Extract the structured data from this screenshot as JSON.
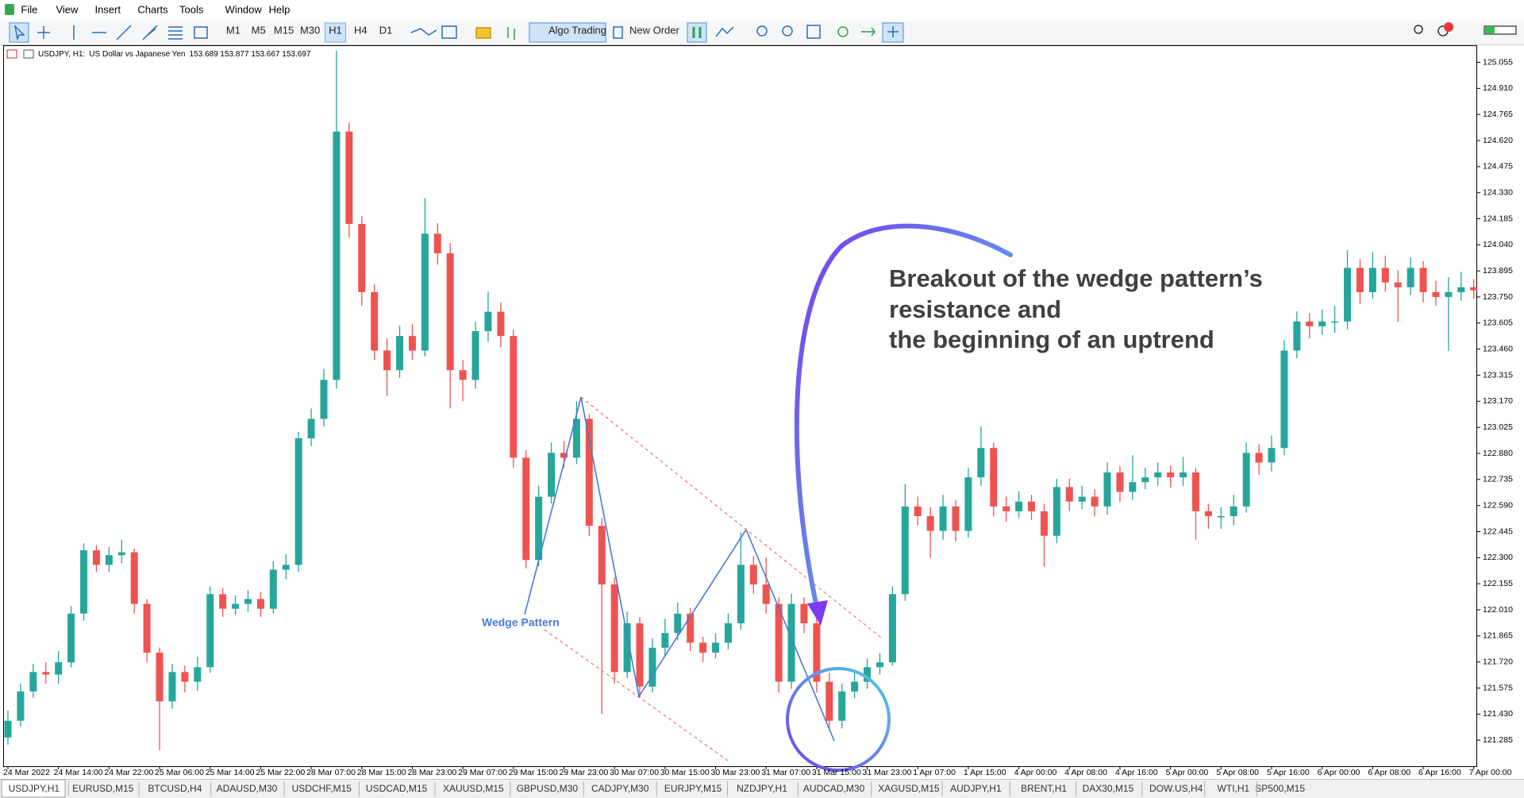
{
  "menu": [
    "File",
    "View",
    "Insert",
    "Charts",
    "Tools",
    "Window",
    "Help"
  ],
  "toolbar": {
    "timeframes": [
      "M1",
      "M5",
      "M15",
      "M30",
      "H1",
      "H4",
      "D1"
    ],
    "active_timeframe": "H1",
    "algo_trading": "Algo Trading",
    "new_order": "New Order"
  },
  "chart_header": {
    "symbol": "USDJPY, H1:",
    "description": "US Dollar vs Japanese Yen",
    "quotes": "153.689 153.877 153.667 153.697"
  },
  "annotations": {
    "breakout": [
      "Breakout of the wedge pattern’s",
      "resistance and",
      "the beginning of an uptrend"
    ],
    "wedge": "Wedge Pattern"
  },
  "tabs": [
    "USDJPY,H1",
    "EURUSD,M15",
    "BTCUSD,H4",
    "ADAUSD,M30",
    "USDCHF,M15",
    "USDCAD,M15",
    "XAUUSD,M15",
    "GBPUSD,M30",
    "CADJPY,M30",
    "EURJPY,M15",
    "NZDJPY,H1",
    "AUDCAD,M30",
    "XAGUSD,M15",
    "AUDJPY,H1",
    "BRENT,H1",
    "DAX30,M15",
    "DOW.US,H4",
    "WTI,H1",
    "SP500,M15"
  ],
  "chart_data": {
    "type": "candlestick",
    "up_color": "#26a69a",
    "down_color": "#ef5350",
    "categories": [
      "24 Mar 2022",
      null,
      null,
      null,
      "24 Mar 14:00",
      null,
      null,
      null,
      "24 Mar 22:00",
      null,
      null,
      null,
      "25 Mar 06:00",
      null,
      null,
      null,
      "25 Mar 14:00",
      null,
      null,
      null,
      "25 Mar 22:00",
      null,
      null,
      null,
      "28 Mar 07:00",
      null,
      null,
      null,
      "28 Mar 15:00",
      null,
      null,
      null,
      "28 Mar 23:00",
      null,
      null,
      null,
      "29 Mar 07:00",
      null,
      null,
      null,
      "29 Mar 15:00",
      null,
      null,
      null,
      "29 Mar 23:00",
      null,
      null,
      null,
      "30 Mar 07:00",
      null,
      null,
      null,
      "30 Mar 15:00",
      null,
      null,
      null,
      "30 Mar 23:00",
      null,
      null,
      null,
      "31 Mar 07:00",
      null,
      null,
      null,
      "31 Mar 15:00",
      null,
      null,
      null,
      "31 Mar 23:00",
      null,
      null,
      null,
      "1 Apr 07:00",
      null,
      null,
      null,
      "1 Apr 15:00",
      null,
      null,
      null,
      "4 Apr 00:00",
      null,
      null,
      null,
      "4 Apr 08:00",
      null,
      null,
      null,
      "4 Apr 16:00",
      null,
      null,
      null,
      "5 Apr 00:00",
      null,
      null,
      null,
      "5 Apr 08:00",
      null,
      null,
      null,
      "5 Apr 16:00",
      null,
      null,
      null,
      "6 Apr 00:00",
      null,
      null,
      null,
      "6 Apr 08:00",
      null,
      null,
      null,
      "6 Apr 16:00",
      null,
      null,
      null,
      "7 Apr 00:00"
    ],
    "open": [
      121.3,
      121.393,
      121.556,
      121.664,
      121.65,
      121.718,
      121.989,
      122.341,
      122.26,
      122.314,
      122.33,
      122.043,
      121.772,
      121.501,
      121.664,
      121.61,
      121.691,
      122.097,
      122.016,
      122.043,
      122.07,
      122.016,
      122.233,
      122.26,
      122.964,
      123.072,
      123.289,
      124.67,
      124.156,
      123.777,
      123.452,
      123.343,
      123.533,
      123.452,
      124.102,
      123.993,
      123.343,
      123.289,
      123.56,
      123.668,
      123.533,
      122.856,
      122.287,
      122.639,
      122.883,
      122.856,
      123.072,
      122.477,
      122.151,
      121.664,
      121.935,
      121.583,
      121.799,
      121.881,
      121.989,
      121.827,
      121.772,
      121.827,
      121.935,
      122.26,
      122.151,
      122.043,
      121.61,
      122.043,
      121.935,
      121.61,
      121.393,
      121.556,
      121.61,
      121.691,
      121.718,
      122.097,
      122.585,
      122.531,
      122.449,
      122.585,
      122.449,
      122.747,
      122.91,
      122.585,
      122.558,
      122.612,
      122.558,
      122.422,
      122.693,
      122.612,
      122.639,
      122.585,
      122.774,
      122.666,
      122.72,
      122.747,
      122.774,
      122.747,
      122.774,
      122.558,
      122.531,
      122.531,
      122.585,
      122.883,
      122.829,
      122.91,
      123.452,
      123.614,
      123.587,
      123.614,
      123.614,
      123.912,
      123.777,
      123.912,
      123.831,
      123.804,
      123.912,
      123.777,
      123.75,
      123.777,
      123.804
    ],
    "close": [
      121.393,
      121.556,
      121.664,
      121.65,
      121.718,
      121.989,
      122.341,
      122.26,
      122.314,
      122.33,
      122.043,
      121.772,
      121.501,
      121.664,
      121.61,
      121.691,
      122.097,
      122.016,
      122.043,
      122.07,
      122.016,
      122.233,
      122.26,
      122.964,
      123.072,
      123.289,
      124.67,
      124.156,
      123.777,
      123.452,
      123.343,
      123.533,
      123.452,
      124.102,
      123.993,
      123.343,
      123.289,
      123.56,
      123.668,
      123.533,
      122.856,
      122.287,
      122.639,
      122.883,
      122.856,
      123.072,
      122.477,
      122.151,
      121.664,
      121.935,
      121.583,
      121.799,
      121.881,
      121.989,
      121.827,
      121.772,
      121.827,
      121.935,
      122.26,
      122.151,
      122.043,
      121.61,
      122.043,
      121.935,
      121.61,
      121.393,
      121.556,
      121.61,
      121.691,
      121.718,
      122.097,
      122.585,
      122.531,
      122.449,
      122.585,
      122.449,
      122.747,
      122.91,
      122.585,
      122.558,
      122.612,
      122.558,
      122.422,
      122.693,
      122.612,
      122.639,
      122.585,
      122.774,
      122.666,
      122.72,
      122.747,
      122.774,
      122.747,
      122.774,
      122.558,
      122.531,
      122.531,
      122.585,
      122.883,
      122.829,
      122.91,
      123.452,
      123.614,
      123.587,
      123.614,
      123.614,
      123.912,
      123.777,
      123.912,
      123.831,
      123.804,
      123.912,
      123.777,
      123.75,
      123.777,
      123.804,
      123.787
    ],
    "high": [
      121.45,
      121.6,
      121.71,
      121.72,
      121.78,
      122.03,
      122.38,
      122.37,
      122.36,
      122.4,
      122.35,
      122.07,
      121.8,
      121.71,
      121.7,
      121.75,
      122.14,
      122.13,
      122.09,
      122.12,
      122.11,
      122.28,
      122.32,
      123.0,
      123.13,
      123.35,
      125.12,
      124.72,
      124.2,
      123.82,
      123.52,
      123.59,
      123.6,
      124.3,
      124.16,
      124.05,
      123.4,
      123.61,
      123.78,
      123.72,
      123.57,
      122.9,
      122.7,
      122.94,
      122.95,
      123.17,
      123.1,
      122.52,
      122.19,
      122.0,
      121.97,
      121.85,
      121.96,
      122.05,
      122.02,
      121.86,
      121.88,
      121.99,
      122.44,
      122.31,
      122.3,
      122.08,
      122.1,
      122.08,
      121.97,
      121.66,
      121.6,
      121.66,
      121.74,
      121.77,
      122.14,
      122.71,
      122.64,
      122.58,
      122.65,
      122.62,
      122.8,
      123.03,
      122.94,
      122.64,
      122.67,
      122.65,
      122.6,
      122.74,
      122.74,
      122.7,
      122.68,
      122.83,
      122.81,
      122.87,
      122.8,
      122.83,
      122.81,
      122.86,
      122.8,
      122.6,
      122.58,
      122.65,
      122.94,
      122.93,
      122.98,
      123.51,
      123.67,
      123.66,
      123.68,
      123.7,
      124.01,
      123.96,
      124.0,
      123.98,
      123.9,
      123.97,
      123.95,
      123.84,
      123.86,
      123.89,
      123.85
    ],
    "low": [
      121.26,
      121.36,
      121.52,
      121.6,
      121.6,
      121.69,
      121.95,
      122.22,
      122.22,
      122.27,
      121.99,
      121.72,
      121.23,
      121.46,
      121.55,
      121.56,
      121.66,
      121.97,
      121.98,
      122.0,
      121.97,
      121.99,
      122.18,
      122.22,
      122.92,
      123.03,
      123.24,
      124.08,
      123.7,
      123.4,
      123.2,
      123.3,
      123.4,
      123.42,
      123.93,
      123.13,
      123.17,
      123.24,
      123.5,
      123.47,
      122.8,
      122.24,
      122.25,
      122.6,
      122.8,
      122.82,
      122.42,
      121.43,
      121.6,
      121.63,
      121.52,
      121.55,
      121.75,
      121.84,
      121.78,
      121.72,
      121.74,
      121.79,
      121.9,
      122.1,
      121.99,
      121.55,
      121.57,
      121.88,
      121.55,
      121.34,
      121.35,
      121.52,
      121.57,
      121.65,
      121.7,
      122.06,
      122.48,
      122.3,
      122.4,
      122.39,
      122.41,
      122.7,
      122.53,
      122.5,
      122.52,
      122.51,
      122.25,
      122.38,
      122.56,
      122.57,
      122.53,
      122.54,
      122.61,
      122.62,
      122.68,
      122.7,
      122.69,
      122.7,
      122.4,
      122.46,
      122.46,
      122.48,
      122.55,
      122.76,
      122.78,
      122.87,
      123.41,
      123.52,
      123.54,
      123.55,
      123.57,
      123.71,
      123.74,
      123.78,
      123.61,
      123.76,
      123.72,
      123.7,
      123.45,
      123.73,
      123.74
    ],
    "ylim": [
      121.14,
      125.15
    ],
    "yticks": [
      125.055,
      {
        "value": 124.91,
        "label": "124.910"
      },
      124.765,
      {
        "value": 124.62,
        "label": "124.620"
      },
      124.475,
      {
        "value": 124.33,
        "label": "124.330"
      },
      124.185,
      {
        "value": 124.04,
        "label": "124.040"
      },
      123.895,
      {
        "value": 123.75,
        "label": "123.750"
      },
      123.605,
      {
        "value": 123.46,
        "label": "123.460"
      },
      123.315,
      {
        "value": 123.17,
        "label": "123.170"
      },
      123.025,
      {
        "value": 122.88,
        "label": "122.880"
      },
      122.735,
      {
        "value": 122.59,
        "label": "122.590"
      },
      122.445,
      {
        "value": 122.3,
        "label": "122.300"
      },
      122.155,
      {
        "value": 122.01,
        "label": "122.010"
      },
      121.865,
      {
        "value": 121.72,
        "label": "121.720"
      },
      121.575,
      {
        "value": 121.43,
        "label": "121.430"
      },
      121.285
    ]
  }
}
